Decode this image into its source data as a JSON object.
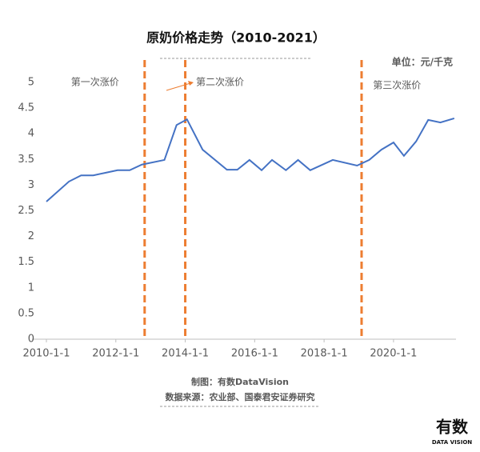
{
  "chart_data": {
    "type": "line",
    "title": "原奶价格走势（2010-2021）",
    "unit": "单位：元/千克",
    "x": [
      2010.0,
      2010.65,
      2011.0,
      2011.35,
      2011.7,
      2012.05,
      2012.4,
      2012.75,
      2013.4,
      2013.75,
      2014.05,
      2014.5,
      2015.2,
      2015.5,
      2015.85,
      2016.2,
      2016.5,
      2016.9,
      2017.25,
      2017.6,
      2018.25,
      2018.95,
      2019.3,
      2019.65,
      2020.0,
      2020.3,
      2020.65,
      2021.0,
      2021.35,
      2021.75
    ],
    "series": [
      {
        "color": "#4472c4",
        "values": [
          2.68,
          3.07,
          3.19,
          3.19,
          3.24,
          3.29,
          3.29,
          3.4,
          3.49,
          4.17,
          4.28,
          3.69,
          3.3,
          3.3,
          3.49,
          3.29,
          3.49,
          3.29,
          3.49,
          3.29,
          3.49,
          3.38,
          3.49,
          3.69,
          3.83,
          3.57,
          3.85,
          4.27,
          4.22,
          4.3
        ]
      }
    ],
    "xlim": [
      2010,
      2021.8
    ],
    "xticks": [
      {
        "value": 2010,
        "label": "2010-1-1"
      },
      {
        "value": 2012,
        "label": "2012-1-1"
      },
      {
        "value": 2014,
        "label": "2014-1-1"
      },
      {
        "value": 2016,
        "label": "2016-1-1"
      },
      {
        "value": 2018,
        "label": "2018-1-1"
      },
      {
        "value": 2020,
        "label": "2020-1-1"
      }
    ],
    "ylim": [
      0,
      5
    ],
    "yticks": [
      0,
      0.5,
      1,
      1.5,
      2,
      2.5,
      3,
      3.5,
      4,
      4.5,
      5
    ],
    "grid": false,
    "events": {
      "color": "#ed7d31",
      "x": [
        2012.83,
        2014.0,
        2019.08
      ],
      "labels": [
        "第一次涨价",
        "第二次涨价",
        "第三次涨价"
      ],
      "label_x": [
        2011.4,
        2015.0,
        2020.1
      ]
    },
    "credit": "制图：有数DataVision",
    "source": "数据来源：农业部、国泰君安证券研究",
    "logo": {
      "main": "有数",
      "sub": "DATA VISION"
    }
  }
}
